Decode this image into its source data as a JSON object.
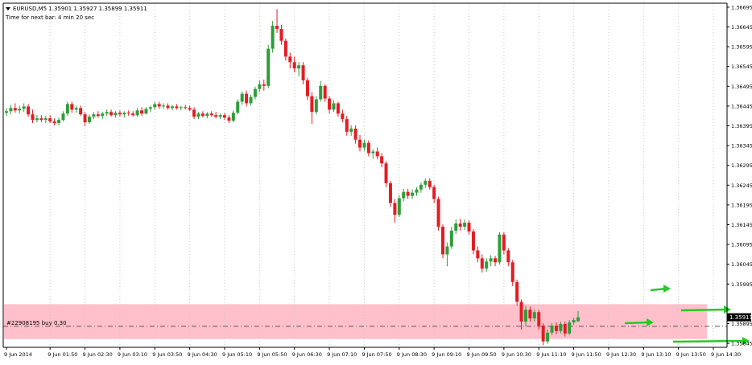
{
  "header": {
    "symbol_line": "EURUSD,M5  1.35901 1.35927 1.35899 1.35911",
    "timer_line": "Time for next bar: 4 min 20 sec"
  },
  "order": {
    "label": "#22908195 buy 0.30",
    "price": 1.35888
  },
  "current_price": {
    "label": "1.35911",
    "value": 1.35911
  },
  "colors": {
    "bull": "#2e9e3a",
    "bear": "#e51c23",
    "zone": "#ffc0cb",
    "arrow": "#22cc22",
    "grid": "#c8c8c8",
    "text": "#000000"
  },
  "chart_data": {
    "type": "candlestick",
    "symbol": "EURUSD",
    "timeframe": "M5",
    "ylim": [
      1.35835,
      1.36705
    ],
    "y_ticks": [
      {
        "label": "1.36695",
        "value": 1.36695
      },
      {
        "label": "1.36645",
        "value": 1.36645
      },
      {
        "label": "1.36595",
        "value": 1.36595
      },
      {
        "label": "1.36545",
        "value": 1.36545
      },
      {
        "label": "1.36495",
        "value": 1.36495
      },
      {
        "label": "1.36445",
        "value": 1.36445
      },
      {
        "label": "1.36395",
        "value": 1.36395
      },
      {
        "label": "1.36345",
        "value": 1.36345
      },
      {
        "label": "1.36295",
        "value": 1.36295
      },
      {
        "label": "1.36245",
        "value": 1.36245
      },
      {
        "label": "1.36195",
        "value": 1.36195
      },
      {
        "label": "1.36145",
        "value": 1.36145
      },
      {
        "label": "1.36095",
        "value": 1.36095
      },
      {
        "label": "1.36045",
        "value": 1.36045
      },
      {
        "label": "1.35995",
        "value": 1.35995
      },
      {
        "label": "1.35895",
        "value": 1.35895
      },
      {
        "label": "1.35845",
        "value": 1.35845
      }
    ],
    "x_ticks": [
      {
        "label": "9 Jun 2014",
        "index": 0
      },
      {
        "label": "9 Jun 01:50",
        "index": 10
      },
      {
        "label": "9 Jun 02:30",
        "index": 18
      },
      {
        "label": "9 Jun 03:10",
        "index": 26
      },
      {
        "label": "9 Jun 03:50",
        "index": 34
      },
      {
        "label": "9 Jun 04:30",
        "index": 42
      },
      {
        "label": "9 Jun 05:10",
        "index": 50
      },
      {
        "label": "9 Jun 05:50",
        "index": 58
      },
      {
        "label": "9 Jun 06:30",
        "index": 66
      },
      {
        "label": "9 Jun 07:10",
        "index": 74
      },
      {
        "label": "9 Jun 07:50",
        "index": 82
      },
      {
        "label": "9 Jun 08:30",
        "index": 90
      },
      {
        "label": "9 Jun 09:10",
        "index": 98
      },
      {
        "label": "9 Jun 09:50",
        "index": 106
      },
      {
        "label": "9 Jun 10:30",
        "index": 114
      },
      {
        "label": "9 Jun 11:10",
        "index": 122
      },
      {
        "label": "9 Jun 11:50",
        "index": 130
      },
      {
        "label": "9 Jun 12:30",
        "index": 138
      },
      {
        "label": "9 Jun 13:10",
        "index": 146
      },
      {
        "label": "9 Jun 13:50",
        "index": 154
      },
      {
        "label": "9 Jun 14:30",
        "index": 162
      }
    ],
    "zone": {
      "top": 1.35944,
      "bottom": 1.35856
    },
    "candles": [
      [
        1.36428,
        1.3644,
        1.3642,
        1.36432
      ],
      [
        1.36432,
        1.36448,
        1.36424,
        1.3644
      ],
      [
        1.3644,
        1.36452,
        1.36428,
        1.36434
      ],
      [
        1.36434,
        1.36446,
        1.36426,
        1.36438
      ],
      [
        1.36438,
        1.36452,
        1.3643,
        1.36444
      ],
      [
        1.36444,
        1.3645,
        1.36418,
        1.36424
      ],
      [
        1.36424,
        1.36436,
        1.36402,
        1.3641
      ],
      [
        1.3641,
        1.36422,
        1.36404,
        1.36414
      ],
      [
        1.36414,
        1.36422,
        1.36404,
        1.3641
      ],
      [
        1.3641,
        1.3642,
        1.36402,
        1.36414
      ],
      [
        1.36414,
        1.36422,
        1.36402,
        1.36406
      ],
      [
        1.36406,
        1.36414,
        1.36396,
        1.36402
      ],
      [
        1.36402,
        1.36416,
        1.36396,
        1.3641
      ],
      [
        1.3641,
        1.36432,
        1.36406,
        1.36426
      ],
      [
        1.36426,
        1.36456,
        1.3642,
        1.3645
      ],
      [
        1.3645,
        1.36456,
        1.36428,
        1.36436
      ],
      [
        1.36436,
        1.36446,
        1.36428,
        1.3644
      ],
      [
        1.3644,
        1.36446,
        1.3642,
        1.36424
      ],
      [
        1.36424,
        1.3643,
        1.36394,
        1.36404
      ],
      [
        1.36404,
        1.36424,
        1.364,
        1.36418
      ],
      [
        1.36418,
        1.3643,
        1.36412,
        1.36424
      ],
      [
        1.36424,
        1.36432,
        1.36416,
        1.3642
      ],
      [
        1.3642,
        1.3643,
        1.36412,
        1.36426
      ],
      [
        1.36426,
        1.36436,
        1.3642,
        1.3643
      ],
      [
        1.3643,
        1.36436,
        1.36418,
        1.36422
      ],
      [
        1.36422,
        1.36432,
        1.36416,
        1.36428
      ],
      [
        1.36428,
        1.36434,
        1.36418,
        1.36424
      ],
      [
        1.36424,
        1.36432,
        1.36416,
        1.36428
      ],
      [
        1.36428,
        1.36434,
        1.3642,
        1.36426
      ],
      [
        1.36426,
        1.36432,
        1.36418,
        1.36422
      ],
      [
        1.36422,
        1.3644,
        1.36418,
        1.36434
      ],
      [
        1.36434,
        1.36442,
        1.3642,
        1.36426
      ],
      [
        1.36426,
        1.36442,
        1.36424,
        1.36438
      ],
      [
        1.36438,
        1.36446,
        1.3643,
        1.36442
      ],
      [
        1.36442,
        1.36456,
        1.36436,
        1.3645
      ],
      [
        1.3645,
        1.36456,
        1.36438,
        1.36444
      ],
      [
        1.36444,
        1.36452,
        1.36438,
        1.36446
      ],
      [
        1.36446,
        1.36452,
        1.36436,
        1.3644
      ],
      [
        1.3644,
        1.36448,
        1.36434,
        1.36444
      ],
      [
        1.36444,
        1.3645,
        1.36436,
        1.3644
      ],
      [
        1.3644,
        1.36446,
        1.36434,
        1.36442
      ],
      [
        1.36442,
        1.36448,
        1.36436,
        1.3644
      ],
      [
        1.3644,
        1.36446,
        1.36432,
        1.36436
      ],
      [
        1.36436,
        1.36442,
        1.36412,
        1.36418
      ],
      [
        1.36418,
        1.3643,
        1.36412,
        1.36426
      ],
      [
        1.36426,
        1.36432,
        1.36416,
        1.3642
      ],
      [
        1.3642,
        1.3643,
        1.36414,
        1.36426
      ],
      [
        1.36426,
        1.36432,
        1.36418,
        1.36422
      ],
      [
        1.36422,
        1.3643,
        1.36414,
        1.36418
      ],
      [
        1.36418,
        1.36426,
        1.36412,
        1.36422
      ],
      [
        1.36422,
        1.36428,
        1.3641,
        1.36416
      ],
      [
        1.36416,
        1.36422,
        1.36402,
        1.36408
      ],
      [
        1.36408,
        1.36434,
        1.36404,
        1.36428
      ],
      [
        1.36428,
        1.36462,
        1.36424,
        1.36456
      ],
      [
        1.36456,
        1.36482,
        1.36448,
        1.36476
      ],
      [
        1.36476,
        1.36484,
        1.36444,
        1.36452
      ],
      [
        1.36452,
        1.36474,
        1.36446,
        1.36468
      ],
      [
        1.36468,
        1.36494,
        1.36462,
        1.36488
      ],
      [
        1.36488,
        1.3651,
        1.3648,
        1.365
      ],
      [
        1.365,
        1.36512,
        1.36484,
        1.36496
      ],
      [
        1.36496,
        1.366,
        1.3649,
        1.3659
      ],
      [
        1.3659,
        1.3666,
        1.3658,
        1.36648
      ],
      [
        1.36648,
        1.3669,
        1.3663,
        1.3664
      ],
      [
        1.3664,
        1.3665,
        1.366,
        1.3661
      ],
      [
        1.3661,
        1.36616,
        1.3656,
        1.3657
      ],
      [
        1.3657,
        1.3658,
        1.3654,
        1.36556
      ],
      [
        1.36556,
        1.3657,
        1.3653,
        1.3654
      ],
      [
        1.3654,
        1.36556,
        1.3652,
        1.36548
      ],
      [
        1.36548,
        1.36556,
        1.365,
        1.3651
      ],
      [
        1.3651,
        1.36516,
        1.3646,
        1.3647
      ],
      [
        1.3647,
        1.3648,
        1.364,
        1.3643
      ],
      [
        1.3643,
        1.3647,
        1.36424,
        1.36462
      ],
      [
        1.36462,
        1.36508,
        1.36456,
        1.36496
      ],
      [
        1.36496,
        1.365,
        1.36456,
        1.36464
      ],
      [
        1.36464,
        1.3647,
        1.36426,
        1.36436
      ],
      [
        1.36436,
        1.3646,
        1.3643,
        1.36452
      ],
      [
        1.36452,
        1.36456,
        1.36418,
        1.36426
      ],
      [
        1.36426,
        1.36436,
        1.36404,
        1.36412
      ],
      [
        1.36412,
        1.3642,
        1.3637,
        1.3638
      ],
      [
        1.3638,
        1.36396,
        1.3637,
        1.36388
      ],
      [
        1.36388,
        1.36396,
        1.3635,
        1.3636
      ],
      [
        1.3636,
        1.36372,
        1.3633,
        1.3634
      ],
      [
        1.3634,
        1.3636,
        1.36332,
        1.36352
      ],
      [
        1.36352,
        1.36358,
        1.36318,
        1.36326
      ],
      [
        1.36326,
        1.36336,
        1.36312,
        1.3633
      ],
      [
        1.3633,
        1.3634,
        1.3631,
        1.36318
      ],
      [
        1.36318,
        1.36326,
        1.3629,
        1.363
      ],
      [
        1.363,
        1.36306,
        1.3624,
        1.3625
      ],
      [
        1.3625,
        1.36256,
        1.3619,
        1.362
      ],
      [
        1.362,
        1.3621,
        1.3615,
        1.3617
      ],
      [
        1.3617,
        1.3622,
        1.36164,
        1.36212
      ],
      [
        1.36212,
        1.36236,
        1.36204,
        1.36228
      ],
      [
        1.36228,
        1.36236,
        1.3621,
        1.36218
      ],
      [
        1.36218,
        1.36234,
        1.3621,
        1.36226
      ],
      [
        1.36226,
        1.3624,
        1.36218,
        1.36234
      ],
      [
        1.36234,
        1.36252,
        1.36226,
        1.36246
      ],
      [
        1.36246,
        1.36262,
        1.36238,
        1.36256
      ],
      [
        1.36256,
        1.36262,
        1.36234,
        1.3624
      ],
      [
        1.3624,
        1.36246,
        1.362,
        1.3621
      ],
      [
        1.3621,
        1.36216,
        1.3613,
        1.3614
      ],
      [
        1.3614,
        1.36146,
        1.3606,
        1.3607
      ],
      [
        1.3607,
        1.361,
        1.3604,
        1.3609
      ],
      [
        1.3609,
        1.3614,
        1.36084,
        1.3613
      ],
      [
        1.3613,
        1.36158,
        1.36122,
        1.36148
      ],
      [
        1.36148,
        1.3616,
        1.3613,
        1.3614
      ],
      [
        1.3614,
        1.36158,
        1.36132,
        1.3615
      ],
      [
        1.3615,
        1.36156,
        1.3612,
        1.36128
      ],
      [
        1.36128,
        1.36134,
        1.3607,
        1.3608
      ],
      [
        1.3608,
        1.3609,
        1.3605,
        1.3606
      ],
      [
        1.3606,
        1.3607,
        1.36024,
        1.36034
      ],
      [
        1.36034,
        1.3606,
        1.36026,
        1.36052
      ],
      [
        1.36052,
        1.36068,
        1.3604,
        1.3606
      ],
      [
        1.3606,
        1.36066,
        1.3604,
        1.3605
      ],
      [
        1.3605,
        1.36126,
        1.36044,
        1.3612
      ],
      [
        1.3612,
        1.36126,
        1.3607,
        1.3608
      ],
      [
        1.3608,
        1.36086,
        1.3604,
        1.3605
      ],
      [
        1.3605,
        1.36056,
        1.3599,
        1.36
      ],
      [
        1.36,
        1.36006,
        1.3594,
        1.3595
      ],
      [
        1.3595,
        1.35956,
        1.3588,
        1.359
      ],
      [
        1.359,
        1.3594,
        1.35888,
        1.3593
      ],
      [
        1.3593,
        1.35938,
        1.359,
        1.35908
      ],
      [
        1.35908,
        1.3593,
        1.359,
        1.35924
      ],
      [
        1.35924,
        1.3593,
        1.3588,
        1.3589
      ],
      [
        1.3589,
        1.35896,
        1.3584,
        1.3585
      ],
      [
        1.3585,
        1.3588,
        1.35844,
        1.35872
      ],
      [
        1.35872,
        1.35896,
        1.35866,
        1.3589
      ],
      [
        1.3589,
        1.35898,
        1.35868,
        1.35876
      ],
      [
        1.35876,
        1.359,
        1.3587,
        1.35894
      ],
      [
        1.35894,
        1.359,
        1.35862,
        1.3587
      ],
      [
        1.3587,
        1.35904,
        1.35866,
        1.35898
      ],
      [
        1.35898,
        1.3591,
        1.35892,
        1.35904
      ],
      [
        1.35901,
        1.35927,
        1.35899,
        1.35911
      ]
    ]
  }
}
